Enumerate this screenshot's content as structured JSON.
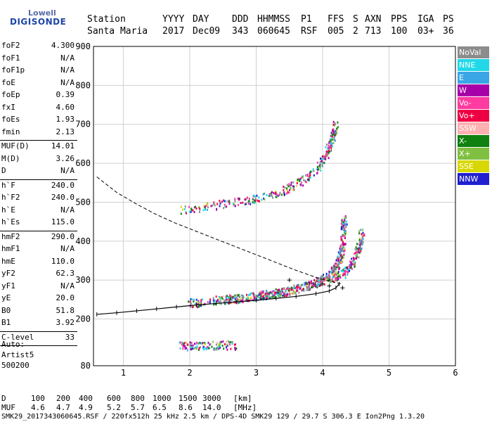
{
  "logo": {
    "brand_top": "Lowell",
    "brand_main": "DIGISONDE"
  },
  "header": {
    "labels": [
      "Station",
      "YYYY",
      "DAY",
      "DDD",
      "HHMMSS",
      "P1",
      "FFS",
      "S",
      "AXN",
      "PPS",
      "IGA",
      "PS"
    ],
    "values": [
      "Santa Maria",
      "2017",
      "Dec09",
      "343",
      "060645",
      "RSF",
      "005",
      "2",
      "713",
      "100",
      "03+",
      "36"
    ]
  },
  "params": [
    {
      "key": "foF2",
      "value": "4.300"
    },
    {
      "key": "foF1",
      "value": "N/A"
    },
    {
      "key": "foF1p",
      "value": "N/A"
    },
    {
      "key": "foE",
      "value": "N/A"
    },
    {
      "key": "foEp",
      "value": "0.39"
    },
    {
      "key": "fxI",
      "value": "4.60"
    },
    {
      "key": "foEs",
      "value": "1.93"
    },
    {
      "key": "fmin",
      "value": "2.13"
    },
    {
      "key": "MUF(D)",
      "value": "14.01"
    },
    {
      "key": "M(D)",
      "value": "3.26"
    },
    {
      "key": "D",
      "value": "N/A"
    },
    {
      "key": "h`F",
      "value": "240.0"
    },
    {
      "key": "h`F2",
      "value": "240.0"
    },
    {
      "key": "h`E",
      "value": "N/A"
    },
    {
      "key": "h`Es",
      "value": "115.0"
    },
    {
      "key": "hmF2",
      "value": "290.0"
    },
    {
      "key": "hmF1",
      "value": "N/A"
    },
    {
      "key": "hmE",
      "value": "110.0"
    },
    {
      "key": "yF2",
      "value": "62.3"
    },
    {
      "key": "yF1",
      "value": "N/A"
    },
    {
      "key": "yE",
      "value": "20.0"
    },
    {
      "key": "B0",
      "value": "51.8"
    },
    {
      "key": "B1",
      "value": "3.92"
    },
    {
      "key": "C-level",
      "value": "33"
    }
  ],
  "autoscaling": {
    "line1": "Auto:",
    "line2": "Artist5",
    "line3": "500200"
  },
  "legend": [
    {
      "name": "NoVal",
      "color": "#8c8c8c"
    },
    {
      "name": "NNE",
      "color": "#22d8e8"
    },
    {
      "name": "E",
      "color": "#3aa6e6"
    },
    {
      "name": "W",
      "color": "#a800a8"
    },
    {
      "name": "Vo-",
      "color": "#ff3aa0"
    },
    {
      "name": "Vo+",
      "color": "#ee0044"
    },
    {
      "name": "SSW",
      "color": "#ffb0b0"
    },
    {
      "name": "X-",
      "color": "#108010"
    },
    {
      "name": "X+",
      "color": "#80c040"
    },
    {
      "name": "SSE",
      "color": "#d8d800"
    },
    {
      "name": "NNW",
      "color": "#2020d0"
    }
  ],
  "footer": {
    "d_label": "D",
    "d_values": [
      "100",
      "200",
      "400",
      "600",
      "800",
      "1000",
      "1500",
      "3000"
    ],
    "d_unit": "[km]",
    "muf_label": "MUF",
    "muf_values": [
      "4.6",
      "4.7",
      "4.9",
      "5.2",
      "5.7",
      "6.5",
      "8.6",
      "14.0"
    ],
    "muf_unit": "[MHz]",
    "file_line": "SMK29_2017343060645.RSF / 220fx512h 25 kHz 2.5 km / DPS-4D SMK29 129 / 29.7 S 306.3 E Ion2Png 1.3.20"
  },
  "chart_data": {
    "type": "scatter",
    "title": "",
    "xlabel": "",
    "ylabel": "",
    "xlim": [
      0.55,
      6.0
    ],
    "ylim": [
      80,
      900
    ],
    "x_ticks": [
      1,
      2,
      3,
      4,
      5,
      6
    ],
    "y_ticks": [
      80,
      200,
      300,
      400,
      500,
      600,
      700,
      800,
      900
    ],
    "grid": true,
    "legend_position": "right",
    "traces": [
      {
        "name": "F2 O-trace",
        "points": [
          [
            2.0,
            240
          ],
          [
            2.3,
            245
          ],
          [
            2.6,
            250
          ],
          [
            2.9,
            255
          ],
          [
            3.2,
            262
          ],
          [
            3.5,
            272
          ],
          [
            3.8,
            285
          ],
          [
            4.0,
            300
          ],
          [
            4.15,
            320
          ],
          [
            4.25,
            345
          ],
          [
            4.3,
            380
          ],
          [
            4.32,
            420
          ],
          [
            4.33,
            460
          ]
        ]
      },
      {
        "name": "F2 X-trace",
        "points": [
          [
            2.5,
            248
          ],
          [
            2.9,
            255
          ],
          [
            3.3,
            265
          ],
          [
            3.7,
            280
          ],
          [
            4.0,
            295
          ],
          [
            4.3,
            315
          ],
          [
            4.45,
            340
          ],
          [
            4.55,
            380
          ],
          [
            4.6,
            430
          ]
        ]
      },
      {
        "name": "F2 multi-hop",
        "points": [
          [
            1.9,
            480
          ],
          [
            2.4,
            490
          ],
          [
            2.9,
            505
          ],
          [
            3.3,
            520
          ],
          [
            3.6,
            545
          ],
          [
            3.9,
            580
          ],
          [
            4.05,
            620
          ],
          [
            4.15,
            660
          ],
          [
            4.2,
            700
          ]
        ]
      },
      {
        "name": "Es trace",
        "points": [
          [
            1.85,
            130
          ],
          [
            2.1,
            130
          ],
          [
            2.4,
            132
          ],
          [
            2.7,
            132
          ]
        ]
      }
    ],
    "profile": {
      "name": "electron density profile",
      "points": [
        [
          0.6,
          212
        ],
        [
          0.9,
          216
        ],
        [
          1.2,
          221
        ],
        [
          1.5,
          226
        ],
        [
          1.8,
          231
        ],
        [
          2.1,
          236
        ],
        [
          2.4,
          240
        ],
        [
          2.7,
          244
        ],
        [
          3.0,
          248
        ],
        [
          3.3,
          253
        ],
        [
          3.6,
          258
        ],
        [
          3.9,
          265
        ],
        [
          4.1,
          272
        ],
        [
          4.2,
          280
        ],
        [
          4.25,
          290
        ]
      ]
    },
    "muf_curve": {
      "name": "MUF curve",
      "points": [
        [
          0.6,
          565
        ],
        [
          0.9,
          525
        ],
        [
          1.2,
          495
        ],
        [
          1.5,
          468
        ],
        [
          1.8,
          445
        ],
        [
          2.1,
          425
        ],
        [
          2.4,
          405
        ],
        [
          2.7,
          385
        ],
        [
          3.0,
          365
        ],
        [
          3.3,
          345
        ],
        [
          3.6,
          325
        ],
        [
          3.9,
          307
        ],
        [
          4.1,
          297
        ],
        [
          4.3,
          290
        ]
      ]
    },
    "range_markers": [
      [
        3.5,
        300
      ],
      [
        4.0,
        290
      ],
      [
        4.1,
        285
      ],
      [
        4.3,
        280
      ]
    ]
  }
}
